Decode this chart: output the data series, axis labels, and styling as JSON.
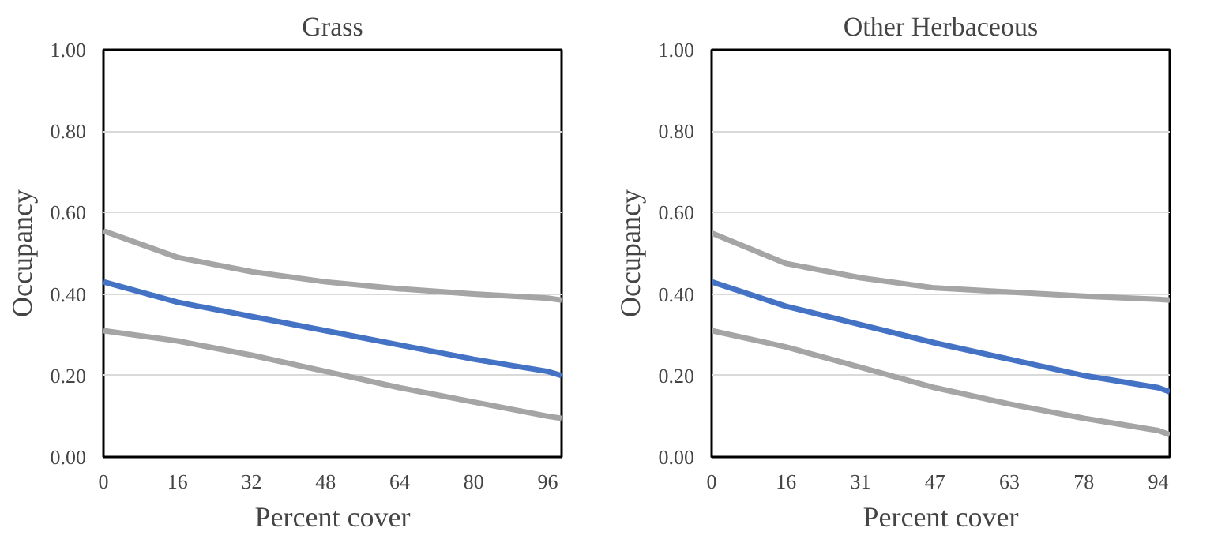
{
  "chart_data": [
    {
      "type": "line",
      "title": "Grass",
      "xlabel": "Percent cover",
      "ylabel": "Occupancy",
      "xlim": [
        0,
        99
      ],
      "xticks": [
        0,
        16,
        32,
        48,
        64,
        80,
        96
      ],
      "ylim": [
        0,
        1
      ],
      "yticks": [
        {
          "value": 0,
          "label": "0.00"
        },
        {
          "value": 0.2,
          "label": "0.20"
        },
        {
          "value": 0.4,
          "label": "0.40"
        },
        {
          "value": 0.6,
          "label": "0.60"
        },
        {
          "value": 0.8,
          "label": "0.80"
        },
        {
          "value": 1,
          "label": "1.00"
        }
      ],
      "grid": "y",
      "x": [
        0,
        16,
        32,
        48,
        64,
        80,
        96,
        99
      ],
      "series": [
        {
          "color": "#a5a5a5",
          "values": [
            0.555,
            0.49,
            0.455,
            0.43,
            0.413,
            0.4,
            0.39,
            0.385
          ]
        },
        {
          "color": "#4472c4",
          "values": [
            0.43,
            0.38,
            0.345,
            0.31,
            0.275,
            0.24,
            0.21,
            0.2
          ]
        },
        {
          "color": "#a5a5a5",
          "values": [
            0.31,
            0.285,
            0.25,
            0.21,
            0.17,
            0.135,
            0.1,
            0.095
          ]
        }
      ]
    },
    {
      "type": "line",
      "title": "Other Herbaceous",
      "xlabel": "Percent cover",
      "ylabel": "Occupancy",
      "xlim": [
        0,
        96.6
      ],
      "xticks": [
        0,
        {
          "value": 15.7,
          "label": "16"
        },
        {
          "value": 31.4,
          "label": "31"
        },
        {
          "value": 47.1,
          "label": "47"
        },
        {
          "value": 62.8,
          "label": "63"
        },
        {
          "value": 78.5,
          "label": "78"
        },
        {
          "value": 94.2,
          "label": "94"
        }
      ],
      "ylim": [
        0,
        1
      ],
      "yticks": [
        {
          "value": 0,
          "label": "0.00"
        },
        {
          "value": 0.2,
          "label": "0.20"
        },
        {
          "value": 0.4,
          "label": "0.40"
        },
        {
          "value": 0.6,
          "label": "0.60"
        },
        {
          "value": 0.8,
          "label": "0.80"
        },
        {
          "value": 1,
          "label": "1.00"
        }
      ],
      "grid": "y",
      "x": [
        0,
        15.7,
        31.4,
        47.1,
        62.8,
        78.5,
        94.2,
        96.6
      ],
      "series": [
        {
          "color": "#a5a5a5",
          "values": [
            0.55,
            0.475,
            0.44,
            0.415,
            0.405,
            0.395,
            0.387,
            0.385
          ]
        },
        {
          "color": "#4472c4",
          "values": [
            0.43,
            0.37,
            0.325,
            0.28,
            0.24,
            0.2,
            0.17,
            0.16
          ]
        },
        {
          "color": "#a5a5a5",
          "values": [
            0.31,
            0.27,
            0.22,
            0.17,
            0.13,
            0.095,
            0.065,
            0.055
          ]
        }
      ]
    }
  ]
}
